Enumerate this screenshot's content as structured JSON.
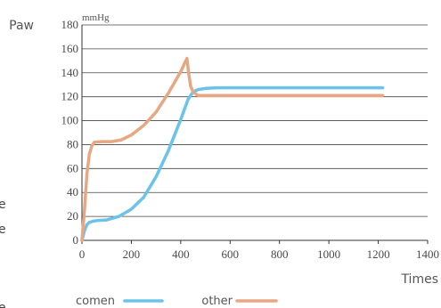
{
  "edge_text": [
    "e",
    "e",
    "e"
  ],
  "chart_data": {
    "type": "line",
    "ylabel": "Paw",
    "yunit": "mmHg",
    "xlabel": "Times",
    "xlim": [
      0,
      1400
    ],
    "ylim": [
      0,
      180
    ],
    "xticks": [
      0,
      200,
      400,
      600,
      800,
      1000,
      1200,
      1400
    ],
    "yticks": [
      0,
      20,
      40,
      60,
      80,
      100,
      120,
      140,
      160,
      180
    ],
    "grid": "horizontal",
    "legend_position": "bottom",
    "series": [
      {
        "name": "comen",
        "color": "#6cc3ea",
        "x": [
          0,
          10,
          20,
          30,
          45,
          60,
          100,
          150,
          200,
          250,
          300,
          350,
          400,
          430,
          450,
          470,
          500,
          550,
          600,
          800,
          1000,
          1218
        ],
        "y": [
          0,
          8,
          13,
          15,
          16,
          16.5,
          17,
          20,
          26,
          36,
          53,
          75,
          101,
          118,
          124,
          126,
          127,
          127.5,
          127.5,
          127.5,
          127.5,
          127.5
        ]
      },
      {
        "name": "other",
        "color": "#e8a783",
        "x": [
          0,
          10,
          20,
          30,
          40,
          50,
          80,
          120,
          160,
          200,
          250,
          300,
          350,
          400,
          425,
          432,
          440,
          450,
          470,
          500,
          600,
          800,
          1000,
          1218
        ],
        "y": [
          0,
          25,
          55,
          72,
          79,
          82,
          82.5,
          82.5,
          84,
          88,
          96,
          107,
          123,
          141,
          152,
          140,
          129,
          124,
          121,
          121,
          121,
          121,
          121,
          121
        ]
      }
    ]
  }
}
